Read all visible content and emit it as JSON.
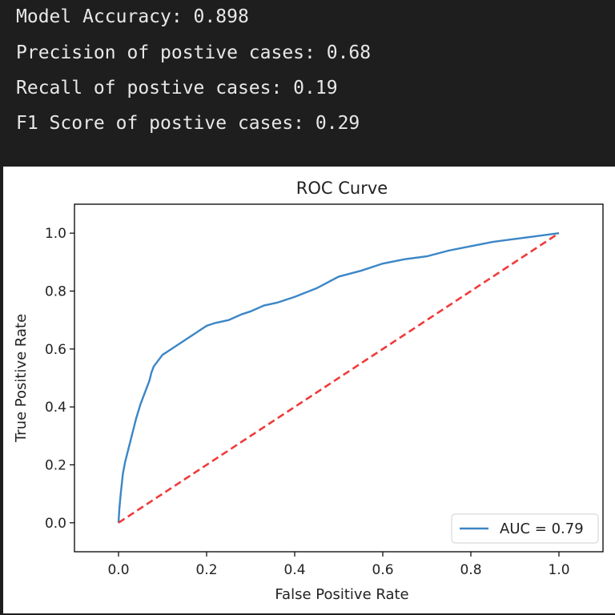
{
  "console": {
    "lines": [
      "Model Accuracy: 0.898",
      "Precision of postive cases: 0.68",
      "Recall of postive cases: 0.19",
      "F1 Score of postive cases: 0.29"
    ]
  },
  "colors": {
    "console_bg": "#1e1e1e",
    "roc_line": "#3b86c6",
    "baseline": "#f03a3a"
  },
  "chart_data": {
    "type": "line",
    "title": "ROC Curve",
    "xlabel": "False Positive Rate",
    "ylabel": "True Positive Rate",
    "xlim": [
      -0.1,
      1.1
    ],
    "ylim": [
      -0.1,
      1.1
    ],
    "xticks": [
      "0.0",
      "0.2",
      "0.4",
      "0.6",
      "0.8",
      "1.0"
    ],
    "yticks": [
      "0.0",
      "0.2",
      "0.4",
      "0.6",
      "0.8",
      "1.0"
    ],
    "legend_position": "lower-right",
    "grid": false,
    "series": [
      {
        "name": "AUC = 0.79",
        "style": "solid",
        "x": [
          0.0,
          0.002,
          0.005,
          0.01,
          0.015,
          0.02,
          0.03,
          0.04,
          0.05,
          0.06,
          0.07,
          0.075,
          0.08,
          0.09,
          0.1,
          0.12,
          0.14,
          0.16,
          0.18,
          0.2,
          0.22,
          0.25,
          0.28,
          0.3,
          0.33,
          0.36,
          0.4,
          0.45,
          0.5,
          0.55,
          0.6,
          0.65,
          0.7,
          0.75,
          0.8,
          0.85,
          0.9,
          0.95,
          1.0
        ],
        "y": [
          0.0,
          0.05,
          0.1,
          0.17,
          0.21,
          0.24,
          0.3,
          0.36,
          0.41,
          0.45,
          0.49,
          0.52,
          0.54,
          0.56,
          0.58,
          0.6,
          0.62,
          0.64,
          0.66,
          0.68,
          0.69,
          0.7,
          0.72,
          0.73,
          0.75,
          0.76,
          0.78,
          0.81,
          0.85,
          0.87,
          0.895,
          0.91,
          0.92,
          0.94,
          0.955,
          0.97,
          0.98,
          0.99,
          1.0
        ]
      },
      {
        "name": "",
        "style": "dashed",
        "x": [
          0.0,
          1.0
        ],
        "y": [
          0.0,
          1.0
        ]
      }
    ]
  }
}
